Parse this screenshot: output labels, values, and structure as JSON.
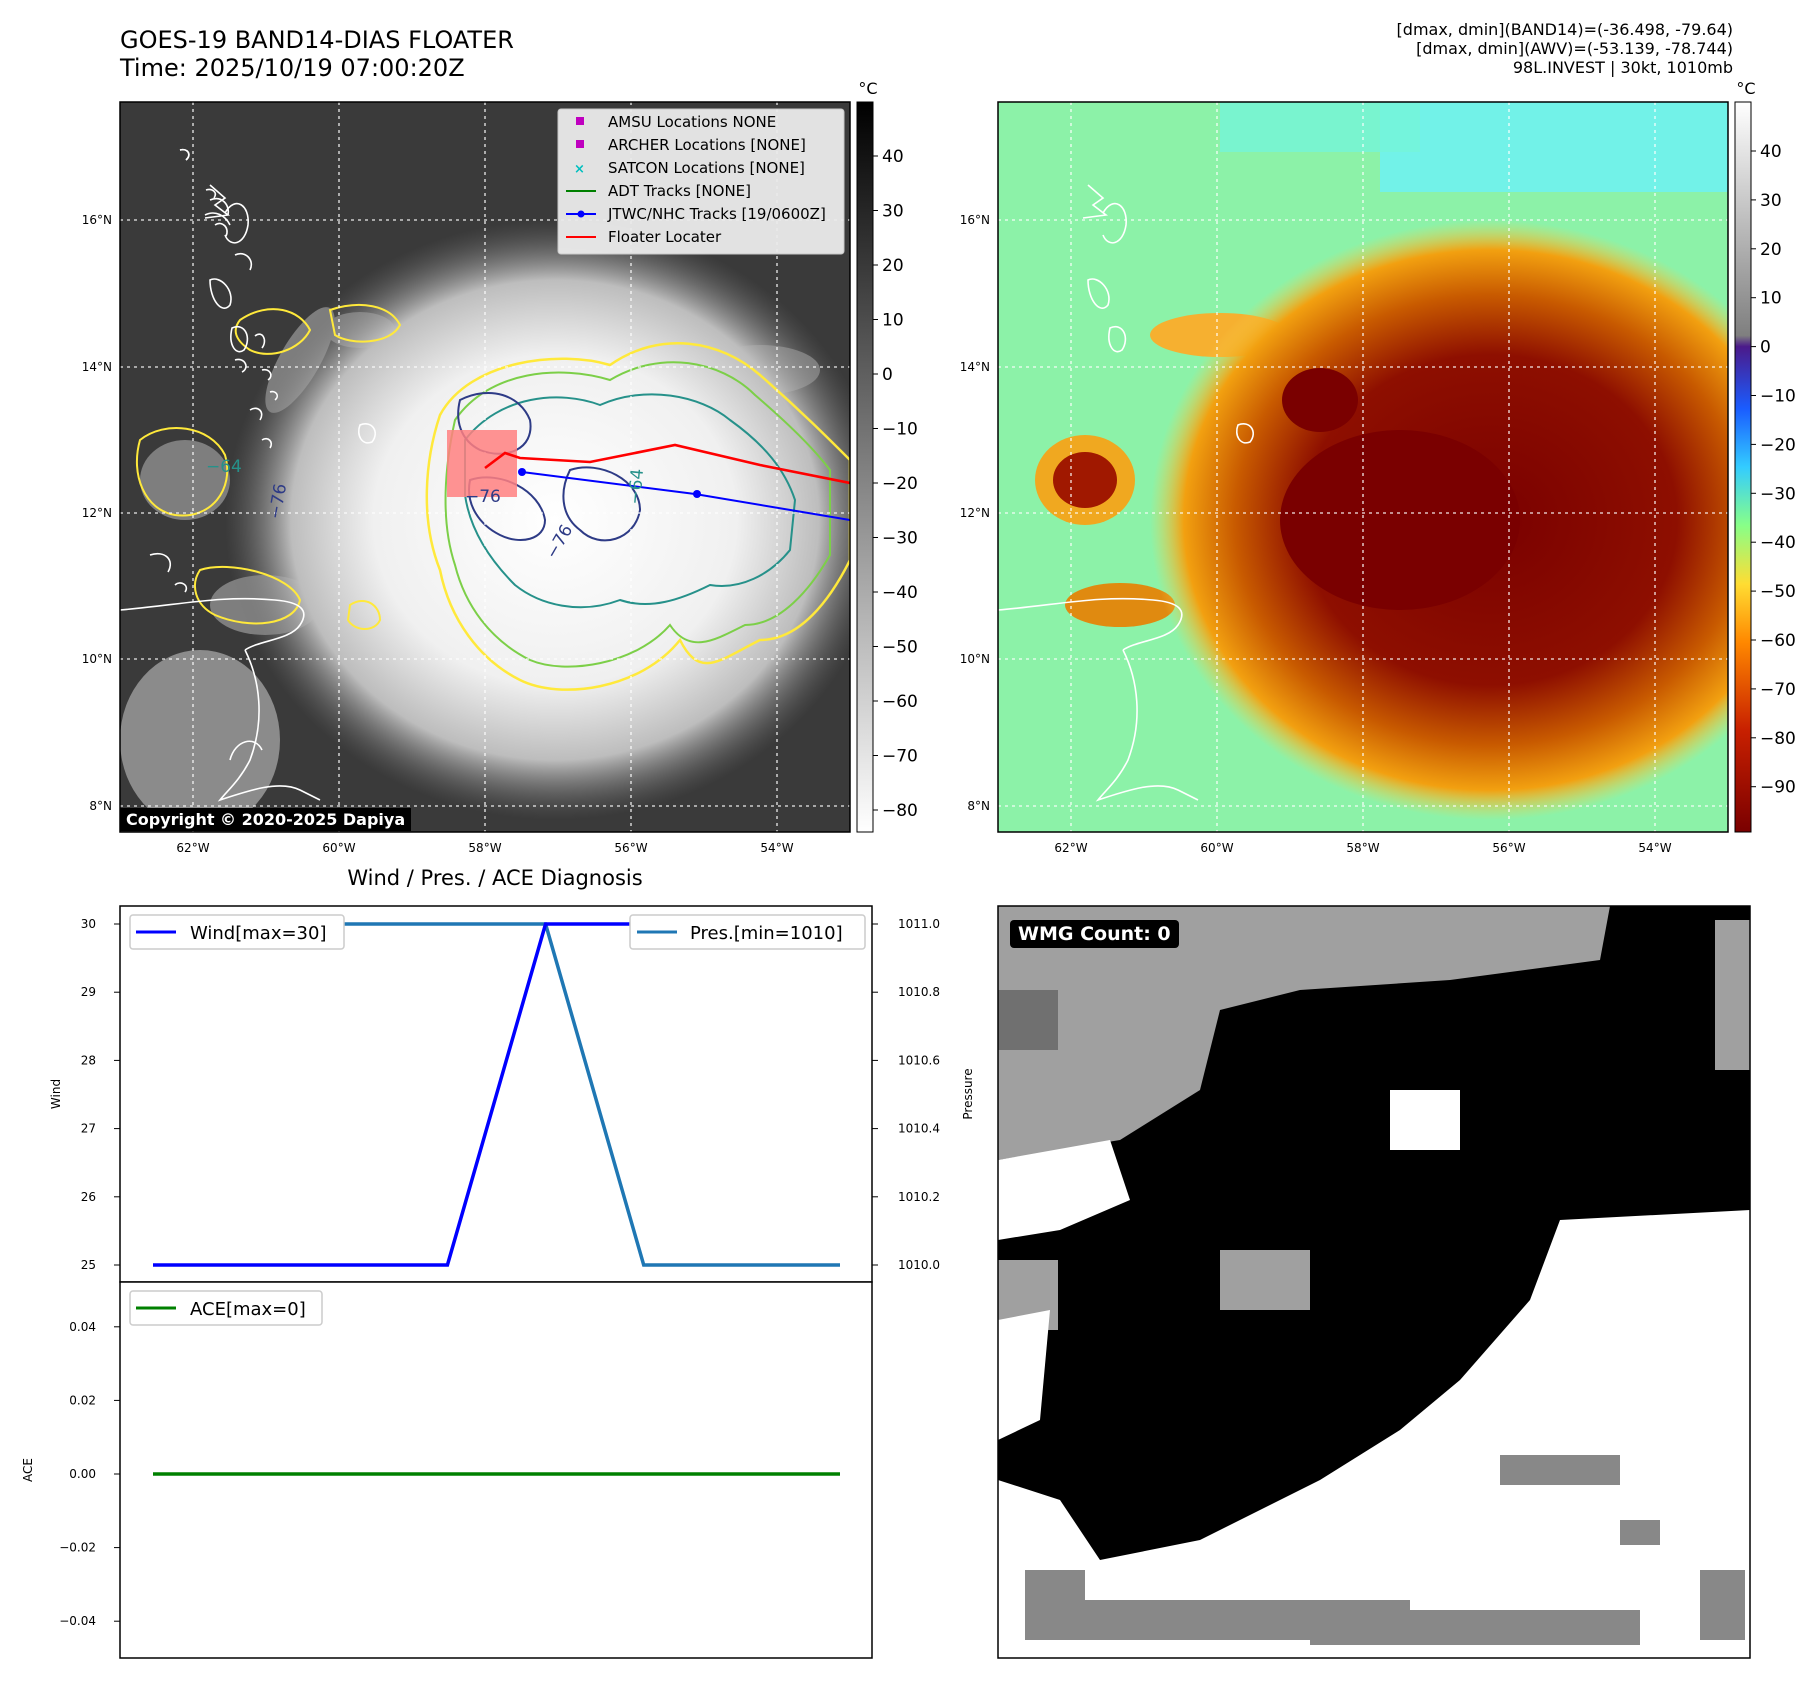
{
  "header": {
    "title": "GOES-19 BAND14-DIAS FLOATER",
    "time": "Time: 2025/10/19 07:00:20Z",
    "stats_band14": "[dmax, dmin](BAND14)=(-36.498, -79.64)",
    "stats_awv": "[dmax, dmin](AWV)=(-53.139, -78.744)",
    "storm": "98L.INVEST | 30kt, 1010mb"
  },
  "copyright": "Copyright © 2020-2025 Dapiya",
  "colors": {
    "wind": "#0000ff",
    "pres": "#1f77b4",
    "ace": "#008000",
    "floater": "#ff0000",
    "jtwc": "#0000ff",
    "adt": "#008000",
    "amsu": "#bf00bf",
    "satcon": "#00bfbf"
  },
  "maps": {
    "lat_labels": [
      "16°N",
      "14°N",
      "12°N",
      "10°N",
      "8°N"
    ],
    "lon_labels": [
      "62°W",
      "60°W",
      "58°W",
      "56°W",
      "54°W"
    ],
    "colorbar_unit": "°C",
    "ir_colorbar_ticks": [
      "40",
      "30",
      "20",
      "10",
      "0",
      "−10",
      "−20",
      "−30",
      "−40",
      "−50",
      "−60",
      "−70",
      "−80"
    ],
    "color_colorbar_ticks": [
      "40",
      "30",
      "20",
      "10",
      "0",
      "−10",
      "−20",
      "−30",
      "−40",
      "−50",
      "−60",
      "−70",
      "−80",
      "−90"
    ],
    "contour_labels": [
      "−64",
      "−76",
      "−76",
      "−64",
      "−76"
    ]
  },
  "legend": [
    {
      "label": "AMSU Locations NONE",
      "marker": "square",
      "color": "#bf00bf"
    },
    {
      "label": "ARCHER Locations [NONE]",
      "marker": "square",
      "color": "#bf00bf"
    },
    {
      "label": "SATCON Locations [NONE]",
      "marker": "x",
      "color": "#00bfbf"
    },
    {
      "label": "ADT Tracks [NONE]",
      "marker": "line",
      "color": "#008000"
    },
    {
      "label": "JTWC/NHC Tracks [19/0600Z]",
      "marker": "line-dot",
      "color": "#0000ff"
    },
    {
      "label": "Floater Locater",
      "marker": "line",
      "color": "#ff0000"
    }
  ],
  "wmg": {
    "label": "WMG Count: 0"
  },
  "chart_data": [
    {
      "type": "line",
      "title": "Wind / Pres. / ACE Diagnosis",
      "ylabel": "Wind",
      "ylabel_right": "Pressure",
      "yticks_left": [
        "30",
        "29",
        "28",
        "27",
        "26",
        "25"
      ],
      "yticks_right": [
        "1011.0",
        "1010.8",
        "1010.6",
        "1010.4",
        "1010.2",
        "1010.0"
      ],
      "ylim": [
        25,
        30
      ],
      "ylim_right": [
        1010.0,
        1011.0
      ],
      "x": [
        0,
        1,
        2,
        3,
        4,
        5,
        6,
        7
      ],
      "series": [
        {
          "name": "Wind[max=30]",
          "axis": "left",
          "values": [
            25,
            25,
            25,
            25,
            30,
            30,
            30,
            30
          ]
        },
        {
          "name": "Pres.[min=1010]",
          "axis": "right",
          "values": [
            1011,
            1011,
            1011,
            1011,
            1011,
            1010,
            1010,
            1010
          ]
        }
      ],
      "legend": [
        "top-left",
        "top-right"
      ]
    },
    {
      "type": "line",
      "ylabel": "ACE",
      "yticks": [
        "0.04",
        "0.02",
        "0.00",
        "−0.02",
        "−0.04"
      ],
      "ylim": [
        -0.05,
        0.05
      ],
      "x": [
        0,
        1,
        2,
        3,
        4,
        5,
        6,
        7
      ],
      "series": [
        {
          "name": "ACE[max=0]",
          "values": [
            0,
            0,
            0,
            0,
            0,
            0,
            0,
            0
          ]
        }
      ],
      "legend": "top-left"
    }
  ]
}
